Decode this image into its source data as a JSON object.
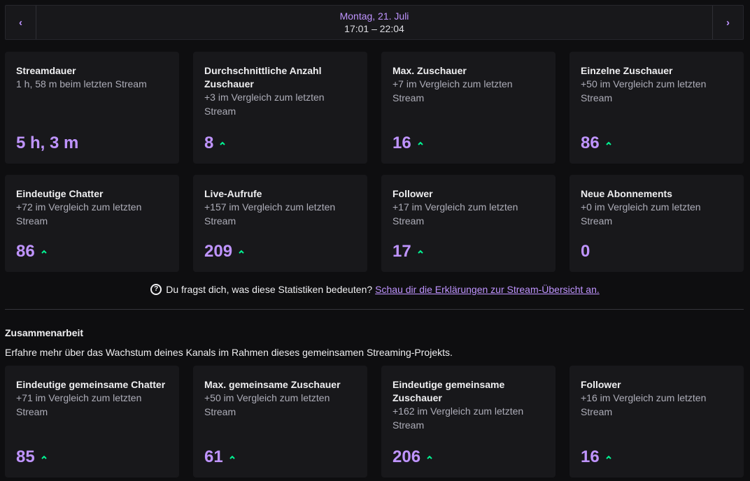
{
  "header": {
    "date": "Montag, 21. Juli",
    "time_range": "17:01 – 22:04",
    "prev_icon": "chevron-left-icon",
    "next_icon": "chevron-right-icon"
  },
  "stats_row1": [
    {
      "title": "Streamdauer",
      "subtitle": "1 h, 58 m beim letzten Stream",
      "value": "5 h, 3 m",
      "trend": "none"
    },
    {
      "title": "Durchschnittliche Anzahl Zuschauer",
      "subtitle": "+3 im Vergleich zum letzten Stream",
      "value": "8",
      "trend": "up"
    },
    {
      "title": "Max. Zuschauer",
      "subtitle": "+7 im Vergleich zum letzten Stream",
      "value": "16",
      "trend": "up"
    },
    {
      "title": "Einzelne Zuschauer",
      "subtitle": "+50 im Vergleich zum letzten Stream",
      "value": "86",
      "trend": "up"
    }
  ],
  "stats_row2": [
    {
      "title": "Eindeutige Chatter",
      "subtitle": "+72 im Vergleich zum letzten Stream",
      "value": "86",
      "trend": "up"
    },
    {
      "title": "Live-Aufrufe",
      "subtitle": "+157 im Vergleich zum letzten Stream",
      "value": "209",
      "trend": "up"
    },
    {
      "title": "Follower",
      "subtitle": "+17 im Vergleich zum letzten Stream",
      "value": "17",
      "trend": "up"
    },
    {
      "title": "Neue Abonnements",
      "subtitle": "+0 im Vergleich zum letzten Stream",
      "value": "0",
      "trend": "none"
    }
  ],
  "help": {
    "icon": "question-circle-icon",
    "text": "Du fragst dich, was diese Statistiken bedeuten?",
    "link": "Schau dir die Erklärungen zur Stream-Übersicht an."
  },
  "collab": {
    "title": "Zusammenarbeit",
    "description": "Erfahre mehr über das Wachstum deines Kanals im Rahmen dieses gemeinsamen Streaming-Projekts.",
    "stats": [
      {
        "title": "Eindeutige gemeinsame Chatter",
        "subtitle": "+71 im Vergleich zum letzten Stream",
        "value": "85",
        "trend": "up"
      },
      {
        "title": "Max. gemeinsame Zuschauer",
        "subtitle": "+50 im Vergleich zum letzten Stream",
        "value": "61",
        "trend": "up"
      },
      {
        "title": "Eindeutige gemeinsame Zuschauer",
        "subtitle": "+162 im Vergleich zum letzten Stream",
        "value": "206",
        "trend": "up"
      },
      {
        "title": "Follower",
        "subtitle": "+16 im Vergleich zum letzten Stream",
        "value": "16",
        "trend": "up"
      }
    ]
  },
  "colors": {
    "accent": "#bf94ff",
    "trend_up": "#00f593",
    "card_bg": "#18181b",
    "page_bg": "#0e0e10"
  }
}
